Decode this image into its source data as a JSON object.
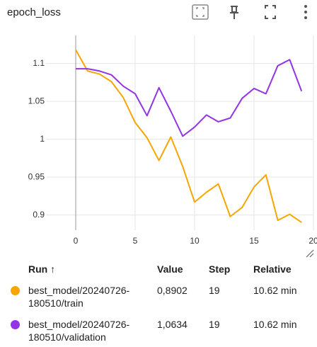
{
  "chart_data": {
    "type": "line",
    "title": "epoch_loss",
    "x": [
      0,
      1,
      2,
      3,
      4,
      5,
      6,
      7,
      8,
      9,
      10,
      11,
      12,
      13,
      14,
      15,
      16,
      17,
      18,
      19
    ],
    "series": [
      {
        "name": "best_model/20240726-180510/train",
        "color": "#f5a700",
        "values": [
          1.118,
          1.09,
          1.086,
          1.076,
          1.055,
          1.022,
          1.002,
          0.972,
          1.003,
          0.964,
          0.917,
          0.93,
          0.941,
          0.898,
          0.91,
          0.937,
          0.953,
          0.893,
          0.901,
          0.8902
        ]
      },
      {
        "name": "best_model/20240726-180510/validation",
        "color": "#9334e6",
        "values": [
          1.093,
          1.093,
          1.09,
          1.085,
          1.07,
          1.06,
          1.031,
          1.068,
          1.037,
          1.004,
          1.016,
          1.032,
          1.023,
          1.028,
          1.054,
          1.067,
          1.06,
          1.097,
          1.105,
          1.0634
        ]
      }
    ],
    "xlim": [
      -2.5,
      20
    ],
    "xticks": [
      0,
      5,
      10,
      15,
      20
    ],
    "ylim": [
      0.88,
      1.137
    ],
    "yticks": [
      0.9,
      0.95,
      1,
      1.05,
      1.1
    ],
    "grid": true
  },
  "table": {
    "columns": [
      "Run ↑",
      "Value",
      "Step",
      "Relative"
    ],
    "rows": [
      [
        "0,8902",
        "19",
        "10.62 min"
      ],
      [
        "1,0634",
        "19",
        "10.62 min"
      ]
    ]
  }
}
